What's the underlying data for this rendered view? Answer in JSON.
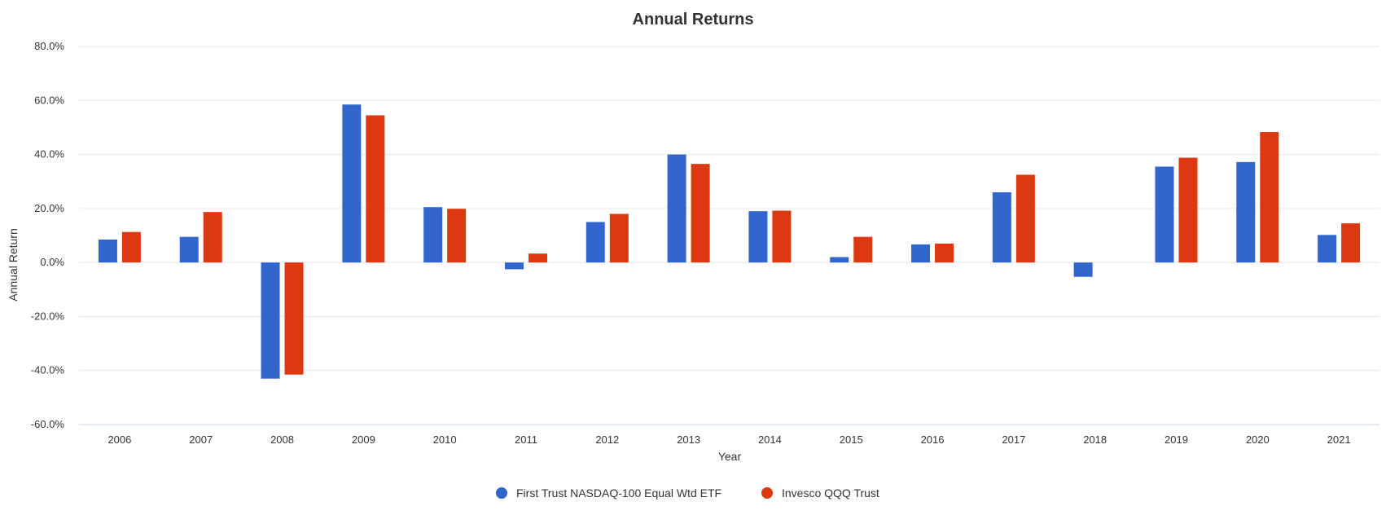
{
  "chart_data": {
    "type": "bar",
    "title": "Annual Returns",
    "xlabel": "Year",
    "ylabel": "Annual Return",
    "categories": [
      "2006",
      "2007",
      "2008",
      "2009",
      "2010",
      "2011",
      "2012",
      "2013",
      "2014",
      "2015",
      "2016",
      "2017",
      "2018",
      "2019",
      "2020",
      "2021"
    ],
    "ylim": [
      -60,
      80
    ],
    "yticks": [
      80,
      60,
      40,
      20,
      0,
      -20,
      -40,
      -60
    ],
    "ytick_labels": [
      "80.0%",
      "60.0%",
      "40.0%",
      "20.0%",
      "0.0%",
      "-20.0%",
      "-40.0%",
      "-60.0%"
    ],
    "grid": true,
    "legend_position": "bottom-center",
    "series": [
      {
        "name": "First Trust NASDAQ-100 Equal Wtd ETF",
        "color": "#3366cc",
        "values": [
          8.5,
          9.5,
          -43.0,
          58.5,
          20.5,
          -2.5,
          15.0,
          40.0,
          19.0,
          2.0,
          6.7,
          26.0,
          -5.3,
          35.5,
          37.2,
          10.2
        ]
      },
      {
        "name": "Invesco QQQ Trust",
        "color": "#dc3912",
        "values": [
          11.3,
          18.7,
          -41.5,
          54.5,
          19.9,
          3.3,
          18.0,
          36.5,
          19.2,
          9.5,
          7.0,
          32.5,
          0.0,
          38.8,
          48.3,
          14.5
        ]
      }
    ]
  }
}
